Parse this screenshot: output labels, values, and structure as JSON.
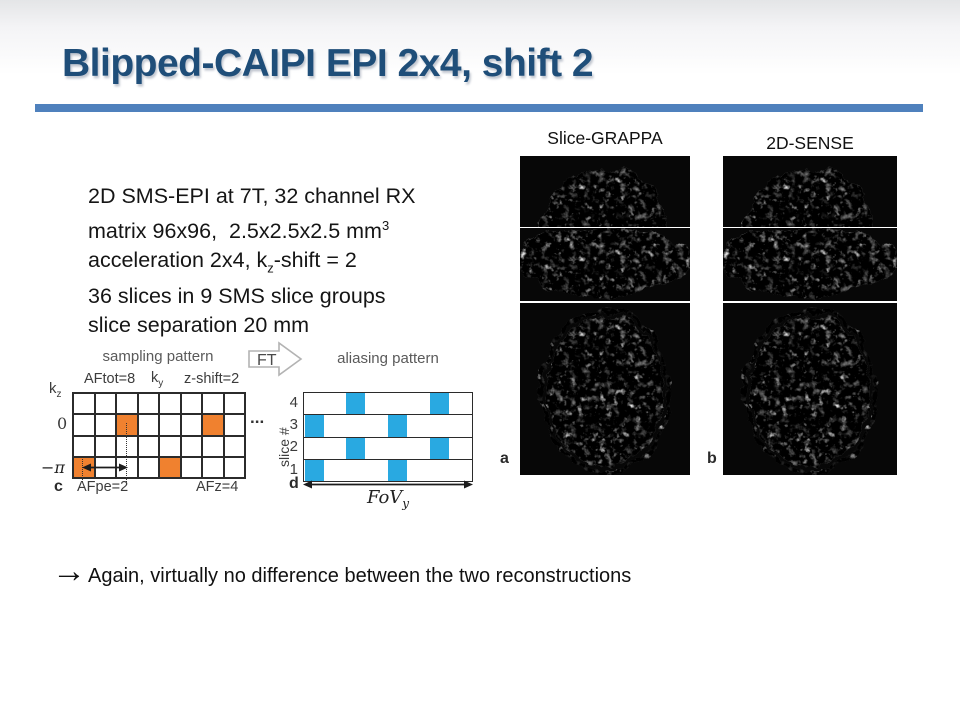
{
  "slide": {
    "title": "Blipped-CAIPI EPI 2x4, shift 2",
    "colors": {
      "title_blue": "#1f4e79",
      "rule_blue": "#4f81bd",
      "orange": "#f0812f",
      "cyan": "#29a9e1",
      "grid_line": "#2b2b2b",
      "diagram_gray": "#5a5a5a"
    }
  },
  "info_text": {
    "line1": "2D SMS-EPI at 7T, 32 channel RX",
    "line2_pre": "matrix 96x96,  2.5x2.5x2.5 mm",
    "line2_sup": "3",
    "line3_pre": "acceleration 2x4, k",
    "line3_sub": "z",
    "line3_post": "-shift = 2",
    "line4": "36 slices in 9 SMS slice groups",
    "line5": "slice separation 20 mm"
  },
  "diagram": {
    "sampling": {
      "title": "sampling pattern",
      "rows": 4,
      "cols": 8,
      "orange_cells": [
        [
          1,
          2
        ],
        [
          1,
          6
        ],
        [
          3,
          0
        ],
        [
          3,
          4
        ]
      ],
      "top_label_left": "AFtot=8",
      "top_label_mid_pre": "k",
      "top_label_mid_sub": "y",
      "top_label_right": "z-shift=2",
      "left_label_pre": "k",
      "left_label_sub": "z",
      "left_label_zero": "0",
      "left_label_pi": "−π",
      "panel_letter": "c",
      "bottom_label_left": "AFpe=2",
      "bottom_label_right": "AFz=4",
      "ellipsis": "..."
    },
    "ft_arrow": {
      "label": "FT"
    },
    "aliasing": {
      "title": "aliasing pattern",
      "rows": 4,
      "cols": 8,
      "blue_cells": [
        [
          0,
          2
        ],
        [
          0,
          6
        ],
        [
          1,
          0
        ],
        [
          1,
          4
        ],
        [
          2,
          2
        ],
        [
          2,
          6
        ],
        [
          3,
          0
        ],
        [
          3,
          4
        ]
      ],
      "y_axis_label": "slice #",
      "row_labels": [
        "4",
        "3",
        "2",
        "1"
      ],
      "panel_letter": "d",
      "x_axis_label_pre": "FoV",
      "x_axis_label_sub": "y"
    }
  },
  "recon": {
    "columns": [
      {
        "label": "Slice-GRAPPA",
        "panel_letter": "a"
      },
      {
        "label": "2D-SENSE",
        "panel_letter": "b"
      }
    ]
  },
  "conclusion": {
    "arrow": "→",
    "text": "Again, virtually no difference between the two reconstructions"
  }
}
